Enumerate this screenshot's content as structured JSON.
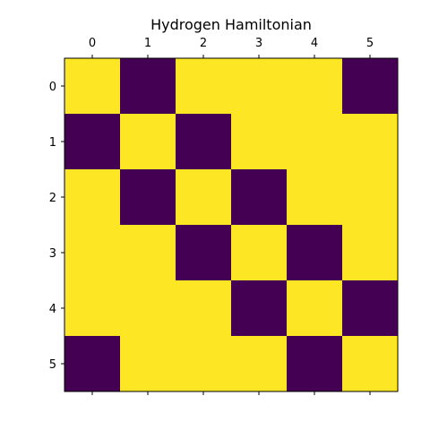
{
  "chart_data": {
    "type": "heatmap",
    "title": "Hydrogen Hamiltonian",
    "xlabel": "",
    "ylabel": "",
    "x_ticks": [
      "0",
      "1",
      "2",
      "3",
      "4",
      "5"
    ],
    "y_ticks": [
      "0",
      "1",
      "2",
      "3",
      "4",
      "5"
    ],
    "x_axis_position": "top",
    "grid": false,
    "colorbar": false,
    "colors": {
      "low": "#440154",
      "high": "#fde725"
    },
    "matrix": [
      [
        1,
        0,
        1,
        1,
        1,
        0
      ],
      [
        0,
        1,
        0,
        1,
        1,
        1
      ],
      [
        1,
        0,
        1,
        0,
        1,
        1
      ],
      [
        1,
        1,
        0,
        1,
        0,
        1
      ],
      [
        1,
        1,
        1,
        0,
        1,
        0
      ],
      [
        0,
        1,
        1,
        1,
        0,
        1
      ]
    ]
  }
}
